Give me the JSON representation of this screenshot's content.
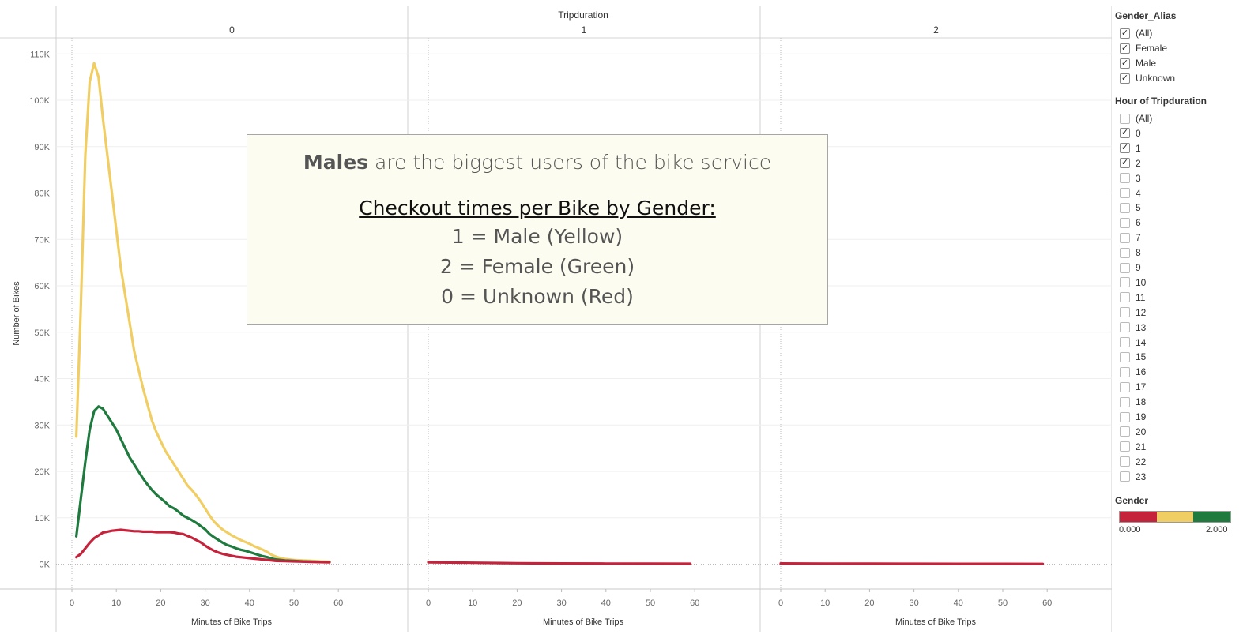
{
  "chart_data": {
    "type": "line",
    "column_header_title": "Tripduration",
    "panels": [
      "0",
      "1",
      "2"
    ],
    "xlabel": "Minutes of Bike Trips",
    "ylabel": "Number of Bikes",
    "xlim": [
      0,
      60
    ],
    "xticks": [
      0,
      10,
      20,
      30,
      40,
      50,
      60
    ],
    "ylim": [
      0,
      110000
    ],
    "yticks": [
      "0K",
      "10K",
      "20K",
      "30K",
      "40K",
      "50K",
      "60K",
      "70K",
      "80K",
      "90K",
      "100K",
      "110K"
    ],
    "series": [
      {
        "gender": 1,
        "color": "#f1ce63",
        "panel": "0",
        "points": [
          [
            1,
            27500
          ],
          [
            2,
            55000
          ],
          [
            3,
            88000
          ],
          [
            4,
            104000
          ],
          [
            5,
            108000
          ],
          [
            6,
            105000
          ],
          [
            7,
            96000
          ],
          [
            8,
            88000
          ],
          [
            9,
            80000
          ],
          [
            10,
            72000
          ],
          [
            11,
            64000
          ],
          [
            12,
            58000
          ],
          [
            13,
            52000
          ],
          [
            14,
            46000
          ],
          [
            15,
            42000
          ],
          [
            16,
            38000
          ],
          [
            17,
            34500
          ],
          [
            18,
            31000
          ],
          [
            19,
            28500
          ],
          [
            20,
            26500
          ],
          [
            21,
            24500
          ],
          [
            22,
            23000
          ],
          [
            23,
            21500
          ],
          [
            24,
            20000
          ],
          [
            25,
            18500
          ],
          [
            26,
            17000
          ],
          [
            27,
            16000
          ],
          [
            28,
            14800
          ],
          [
            29,
            13500
          ],
          [
            30,
            12000
          ],
          [
            31,
            10500
          ],
          [
            32,
            9200
          ],
          [
            33,
            8200
          ],
          [
            34,
            7400
          ],
          [
            35,
            6800
          ],
          [
            36,
            6200
          ],
          [
            37,
            5700
          ],
          [
            38,
            5200
          ],
          [
            39,
            4800
          ],
          [
            40,
            4400
          ],
          [
            41,
            3900
          ],
          [
            42,
            3500
          ],
          [
            43,
            3100
          ],
          [
            44,
            2600
          ],
          [
            45,
            2000
          ],
          [
            46,
            1600
          ],
          [
            47,
            1300
          ],
          [
            48,
            1100
          ],
          [
            49,
            1000
          ],
          [
            50,
            900
          ],
          [
            52,
            800
          ],
          [
            54,
            700
          ],
          [
            56,
            600
          ],
          [
            58,
            550
          ]
        ]
      },
      {
        "gender": 2,
        "color": "#1f7a3e",
        "panel": "0",
        "points": [
          [
            1,
            6000
          ],
          [
            2,
            14000
          ],
          [
            3,
            22000
          ],
          [
            4,
            29000
          ],
          [
            5,
            33000
          ],
          [
            6,
            34000
          ],
          [
            7,
            33500
          ],
          [
            8,
            32000
          ],
          [
            9,
            30500
          ],
          [
            10,
            29000
          ],
          [
            11,
            27000
          ],
          [
            12,
            25000
          ],
          [
            13,
            23000
          ],
          [
            14,
            21500
          ],
          [
            15,
            20000
          ],
          [
            16,
            18500
          ],
          [
            17,
            17200
          ],
          [
            18,
            16000
          ],
          [
            19,
            15000
          ],
          [
            20,
            14200
          ],
          [
            21,
            13400
          ],
          [
            22,
            12500
          ],
          [
            23,
            12000
          ],
          [
            24,
            11300
          ],
          [
            25,
            10500
          ],
          [
            26,
            10000
          ],
          [
            27,
            9500
          ],
          [
            28,
            8900
          ],
          [
            29,
            8200
          ],
          [
            30,
            7500
          ],
          [
            31,
            6500
          ],
          [
            32,
            5800
          ],
          [
            33,
            5200
          ],
          [
            34,
            4600
          ],
          [
            35,
            4100
          ],
          [
            36,
            3800
          ],
          [
            37,
            3400
          ],
          [
            38,
            3100
          ],
          [
            39,
            2900
          ],
          [
            40,
            2600
          ],
          [
            41,
            2300
          ],
          [
            42,
            2000
          ],
          [
            43,
            1700
          ],
          [
            44,
            1500
          ],
          [
            45,
            1200
          ],
          [
            46,
            1000
          ],
          [
            48,
            800
          ],
          [
            50,
            700
          ],
          [
            52,
            600
          ],
          [
            54,
            550
          ],
          [
            56,
            500
          ],
          [
            58,
            450
          ]
        ]
      },
      {
        "gender": 0,
        "color": "#c4233b",
        "panel": "0",
        "points": [
          [
            1,
            1500
          ],
          [
            2,
            2200
          ],
          [
            3,
            3400
          ],
          [
            4,
            4600
          ],
          [
            5,
            5600
          ],
          [
            6,
            6200
          ],
          [
            7,
            6800
          ],
          [
            8,
            7000
          ],
          [
            9,
            7200
          ],
          [
            10,
            7300
          ],
          [
            11,
            7400
          ],
          [
            12,
            7300
          ],
          [
            13,
            7200
          ],
          [
            14,
            7100
          ],
          [
            15,
            7100
          ],
          [
            16,
            7000
          ],
          [
            17,
            7000
          ],
          [
            18,
            7000
          ],
          [
            19,
            6900
          ],
          [
            20,
            6900
          ],
          [
            21,
            6900
          ],
          [
            22,
            6900
          ],
          [
            23,
            6800
          ],
          [
            24,
            6600
          ],
          [
            25,
            6500
          ],
          [
            26,
            6100
          ],
          [
            27,
            5700
          ],
          [
            28,
            5200
          ],
          [
            29,
            4700
          ],
          [
            30,
            4000
          ],
          [
            31,
            3400
          ],
          [
            32,
            2900
          ],
          [
            33,
            2500
          ],
          [
            34,
            2200
          ],
          [
            35,
            2000
          ],
          [
            36,
            1800
          ],
          [
            37,
            1600
          ],
          [
            38,
            1500
          ],
          [
            39,
            1400
          ],
          [
            40,
            1300
          ],
          [
            41,
            1200
          ],
          [
            42,
            1100
          ],
          [
            43,
            1000
          ],
          [
            44,
            900
          ],
          [
            45,
            800
          ],
          [
            46,
            700
          ],
          [
            48,
            650
          ],
          [
            50,
            600
          ],
          [
            52,
            550
          ],
          [
            54,
            500
          ],
          [
            56,
            450
          ],
          [
            58,
            400
          ]
        ]
      },
      {
        "gender": 0,
        "color": "#c4233b",
        "panel": "1",
        "points": [
          [
            0,
            400
          ],
          [
            10,
            300
          ],
          [
            20,
            200
          ],
          [
            30,
            150
          ],
          [
            40,
            120
          ],
          [
            50,
            100
          ],
          [
            59,
            80
          ]
        ]
      },
      {
        "gender": 0,
        "color": "#c4233b",
        "panel": "2",
        "points": [
          [
            0,
            150
          ],
          [
            10,
            120
          ],
          [
            20,
            100
          ],
          [
            30,
            80
          ],
          [
            40,
            70
          ],
          [
            50,
            60
          ],
          [
            59,
            50
          ]
        ]
      }
    ],
    "annotation": {
      "line1_bold": "Males",
      "line1_rest": " are the biggest users of the bike service",
      "line2": "Checkout times per Bike by Gender:",
      "line3": "1 = Male (Yellow)",
      "line4": "2 = Female (Green)",
      "line5": "0 = Unknown (Red)"
    }
  },
  "filters": {
    "gender_alias": {
      "title": "Gender_Alias",
      "items": [
        {
          "label": "(All)",
          "checked": true
        },
        {
          "label": "Female",
          "checked": true
        },
        {
          "label": "Male",
          "checked": true
        },
        {
          "label": "Unknown",
          "checked": true
        }
      ]
    },
    "hour": {
      "title": "Hour of Tripduration",
      "items": [
        {
          "label": "(All)",
          "checked": false
        },
        {
          "label": "0",
          "checked": true
        },
        {
          "label": "1",
          "checked": true
        },
        {
          "label": "2",
          "checked": true
        },
        {
          "label": "3",
          "checked": false
        },
        {
          "label": "4",
          "checked": false
        },
        {
          "label": "5",
          "checked": false
        },
        {
          "label": "6",
          "checked": false
        },
        {
          "label": "7",
          "checked": false
        },
        {
          "label": "8",
          "checked": false
        },
        {
          "label": "9",
          "checked": false
        },
        {
          "label": "10",
          "checked": false
        },
        {
          "label": "11",
          "checked": false
        },
        {
          "label": "12",
          "checked": false
        },
        {
          "label": "13",
          "checked": false
        },
        {
          "label": "14",
          "checked": false
        },
        {
          "label": "15",
          "checked": false
        },
        {
          "label": "16",
          "checked": false
        },
        {
          "label": "17",
          "checked": false
        },
        {
          "label": "18",
          "checked": false
        },
        {
          "label": "19",
          "checked": false
        },
        {
          "label": "20",
          "checked": false
        },
        {
          "label": "21",
          "checked": false
        },
        {
          "label": "22",
          "checked": false
        },
        {
          "label": "23",
          "checked": false
        }
      ]
    }
  },
  "legend": {
    "title": "Gender",
    "min_label": "0.000",
    "max_label": "2.000",
    "colors": [
      "#c4233b",
      "#f1ce63",
      "#1f7a3e"
    ]
  },
  "check_glyph": "✓"
}
